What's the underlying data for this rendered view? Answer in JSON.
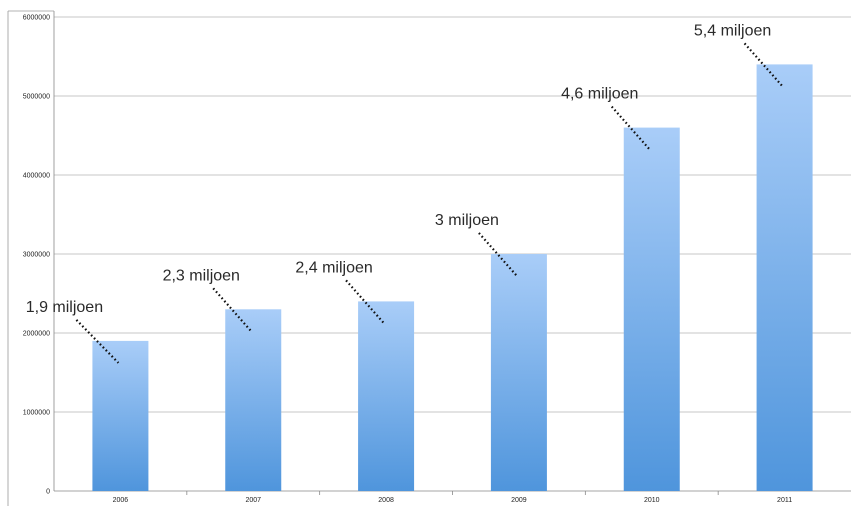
{
  "chart_data": {
    "type": "bar",
    "categories": [
      "2006",
      "2007",
      "2008",
      "2009",
      "2010",
      "2011"
    ],
    "values": [
      1900000,
      2300000,
      2400000,
      3000000,
      4600000,
      5400000
    ],
    "ylim": [
      0,
      6000000
    ],
    "yticks": [
      "0",
      "1000000",
      "2000000",
      "3000000",
      "4000000",
      "5000000",
      "6000000"
    ],
    "grid": true,
    "annotations": [
      "1,9 miljoen",
      "2,3 miljoen",
      "2,4 miljoen",
      "3 miljoen",
      "4,6 miljoen",
      "5,4 miljoen"
    ],
    "colors": {
      "bar_top": "#a9cdf8",
      "bar_bottom": "#4f95dc",
      "grid": "#b4b4b4",
      "leader": "#111111"
    }
  }
}
